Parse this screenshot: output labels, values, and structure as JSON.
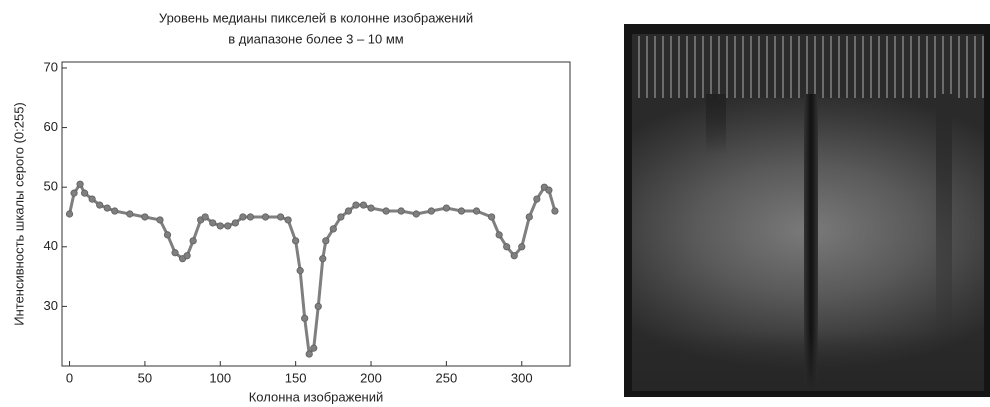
{
  "chart_data": {
    "type": "line",
    "title": [
      "Уровень медианы пикселей в колонне изображений",
      "в диапазоне более 3 – 10 мм"
    ],
    "x_label": "Колонна изображений",
    "y_label": "Интенсивность шкалы серого (0:255)",
    "x": [
      0,
      3,
      7,
      10,
      15,
      20,
      25,
      30,
      40,
      50,
      60,
      65,
      70,
      75,
      78,
      82,
      87,
      90,
      95,
      100,
      105,
      110,
      115,
      120,
      130,
      140,
      145,
      150,
      153,
      156,
      159,
      162,
      165,
      168,
      170,
      175,
      180,
      185,
      190,
      195,
      200,
      210,
      220,
      230,
      240,
      250,
      260,
      270,
      280,
      285,
      290,
      295,
      300,
      305,
      310,
      315,
      318,
      322
    ],
    "series": [
      {
        "color": "#7f7f7f",
        "values": [
          45.5,
          49,
          50.5,
          49,
          48,
          47,
          46.5,
          46,
          45.5,
          45,
          44.5,
          42,
          39,
          38,
          38.5,
          41,
          44.5,
          45,
          44,
          43.5,
          43.5,
          44,
          45,
          45,
          45,
          45,
          44.5,
          41,
          36,
          28,
          22,
          23,
          30,
          38,
          41,
          43,
          45,
          46,
          47,
          47,
          46.5,
          46,
          46,
          45.5,
          46,
          46.5,
          46,
          46,
          45,
          42,
          40,
          38.5,
          40,
          45,
          48,
          50,
          49.5,
          46
        ]
      }
    ],
    "xlim": [
      -5,
      332
    ],
    "ylim": [
      20,
      71
    ],
    "xticks": [
      0,
      50,
      100,
      150,
      200,
      250,
      300
    ],
    "yticks": [
      30,
      40,
      50,
      60,
      70
    ]
  }
}
